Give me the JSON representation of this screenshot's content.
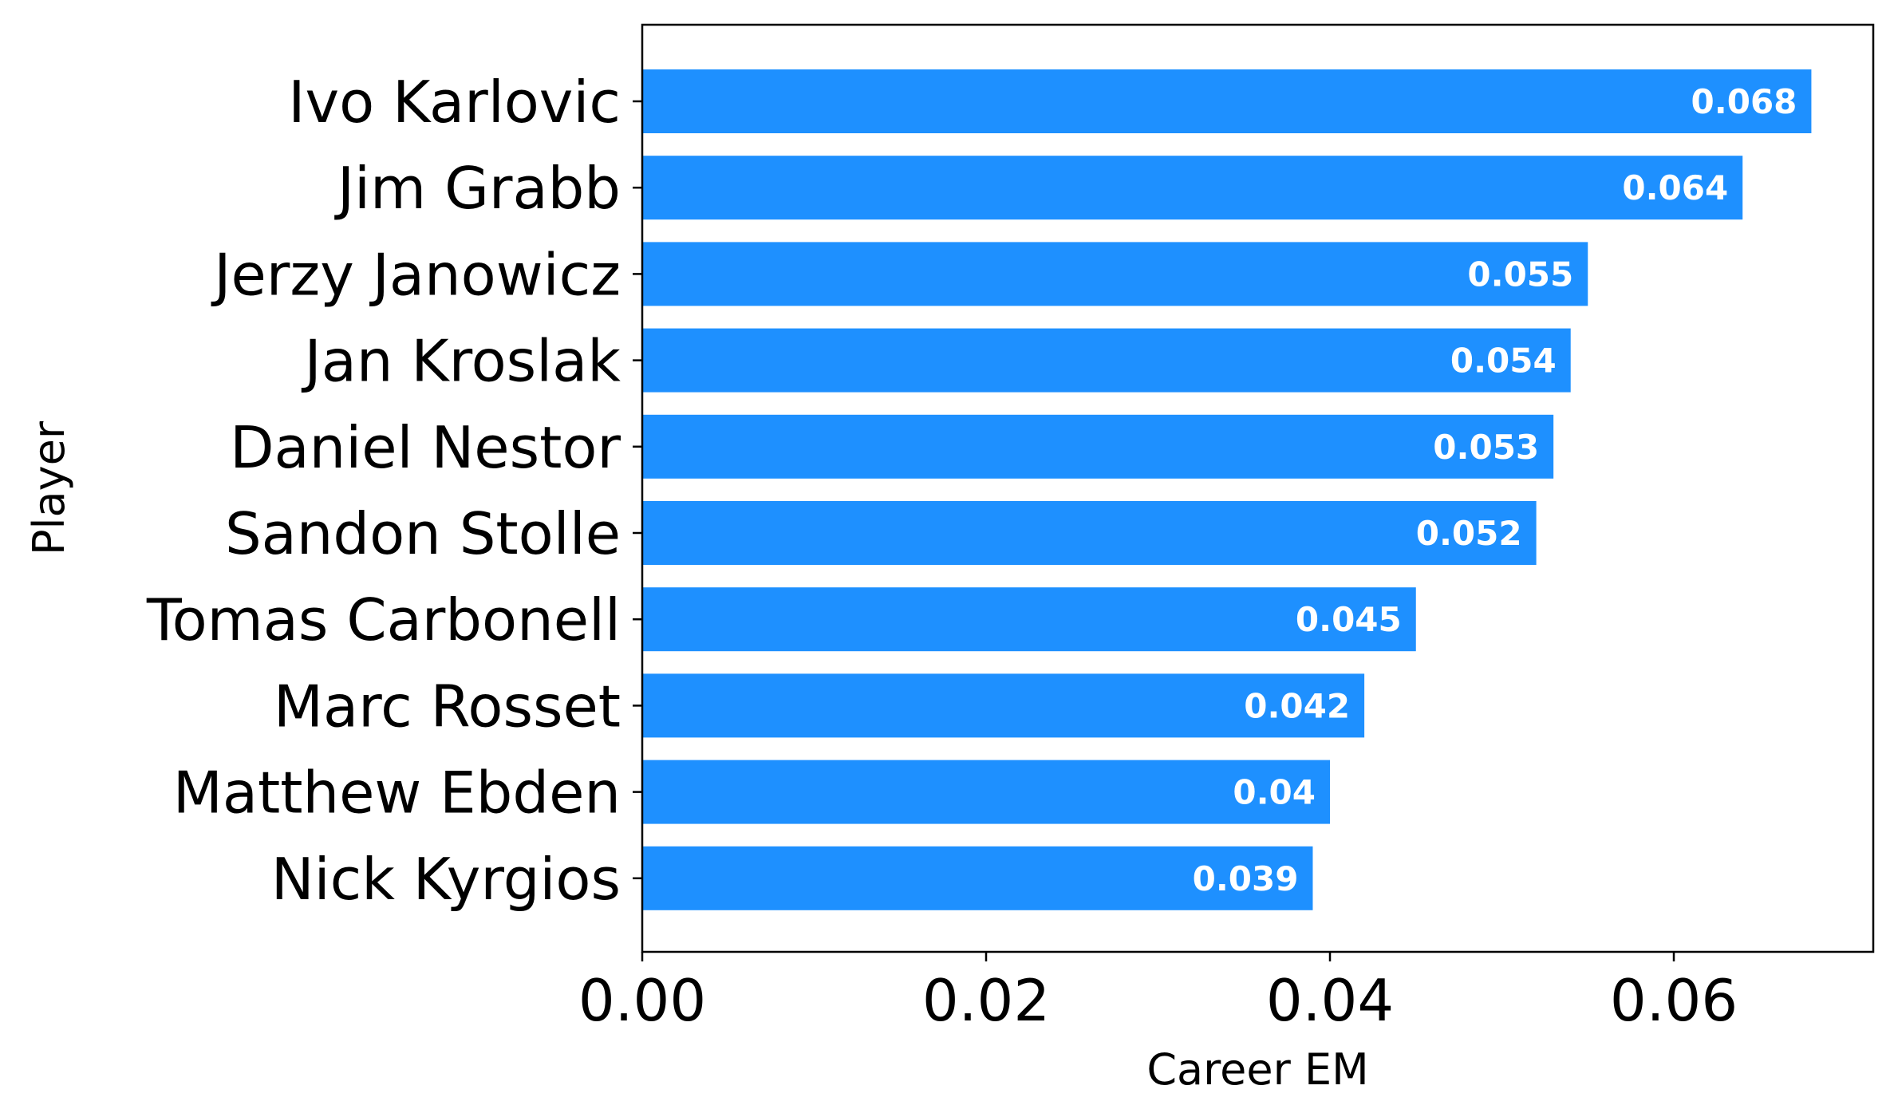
{
  "chart_data": {
    "type": "bar",
    "orientation": "horizontal",
    "categories": [
      "Ivo Karlovic",
      "Jim Grabb",
      "Jerzy Janowicz",
      "Jan Kroslak",
      "Daniel Nestor",
      "Sandon Stolle",
      "Tomas Carbonell",
      "Marc Rosset",
      "Matthew Ebden",
      "Nick Kyrgios"
    ],
    "values": [
      0.068,
      0.064,
      0.055,
      0.054,
      0.053,
      0.052,
      0.045,
      0.042,
      0.04,
      0.039
    ],
    "value_labels": [
      "0.068",
      "0.064",
      "0.055",
      "0.054",
      "0.053",
      "0.052",
      "0.045",
      "0.042",
      "0.04",
      "0.039"
    ],
    "xlabel": "Career EM",
    "ylabel": "Player",
    "xlim": [
      0,
      0.0716
    ],
    "xticks": [
      0,
      0.02,
      0.04,
      0.06
    ],
    "xtick_labels": [
      "0.00",
      "0.02",
      "0.04",
      "0.06"
    ],
    "grid": false,
    "bar_color": "#1e90ff",
    "label_color": "#ffffff"
  }
}
